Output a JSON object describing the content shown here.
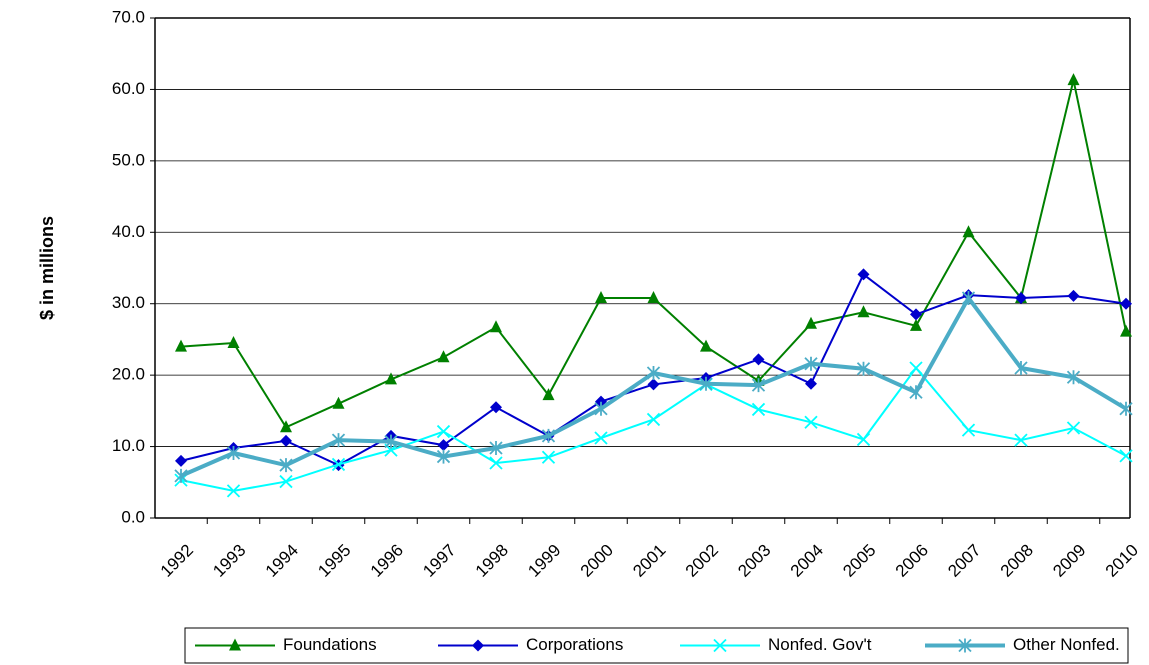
{
  "chart_data": {
    "type": "line",
    "ylabel": "$ in millions",
    "categories": [
      "1992",
      "1993",
      "1994",
      "1995",
      "1996",
      "1997",
      "1998",
      "1999",
      "2000",
      "2001",
      "2002",
      "2003",
      "2004",
      "2005",
      "2006",
      "2007",
      "2008",
      "2009",
      "2010"
    ],
    "ylim": [
      0,
      70
    ],
    "yticks": [
      {
        "value": 0,
        "label": "0.0"
      },
      {
        "value": 10,
        "label": "10.0"
      },
      {
        "value": 20,
        "label": "20.0"
      },
      {
        "value": 30,
        "label": "30.0"
      },
      {
        "value": 40,
        "label": "40.0"
      },
      {
        "value": 50,
        "label": "50.0"
      },
      {
        "value": 60,
        "label": "60.0"
      },
      {
        "value": 70,
        "label": "70.0"
      }
    ],
    "grid": true,
    "legend": "bottom",
    "series": [
      {
        "name": "Foundations",
        "color": "#008000",
        "marker": "triangle",
        "values": [
          24.0,
          24.5,
          12.7,
          16.0,
          19.4,
          22.5,
          26.7,
          17.2,
          30.8,
          30.8,
          24.0,
          19.2,
          27.2,
          28.8,
          26.9,
          40.0,
          30.8,
          61.3,
          26.1
        ]
      },
      {
        "name": "Corporations",
        "color": "#0000cc",
        "marker": "diamond",
        "values": [
          8.0,
          9.8,
          10.8,
          7.4,
          11.5,
          10.2,
          15.5,
          11.5,
          16.3,
          18.7,
          19.6,
          22.2,
          18.8,
          34.1,
          28.5,
          31.2,
          30.8,
          31.1,
          30.0
        ]
      },
      {
        "name": "Nonfed. Gov't",
        "color": "#00ffff",
        "marker": "x",
        "values": [
          5.3,
          3.8,
          5.1,
          7.5,
          9.5,
          12.1,
          7.7,
          8.5,
          11.2,
          13.8,
          18.7,
          15.2,
          13.4,
          11.0,
          21.0,
          12.3,
          10.9,
          12.6,
          8.7
        ]
      },
      {
        "name": "Other Nonfed.",
        "color": "#4bacc6",
        "marker": "star",
        "width": 4,
        "values": [
          5.9,
          9.1,
          7.4,
          10.9,
          10.7,
          8.6,
          9.8,
          11.5,
          15.3,
          20.3,
          18.8,
          18.6,
          21.6,
          20.9,
          17.6,
          30.8,
          21.0,
          19.7,
          15.3
        ]
      }
    ]
  }
}
